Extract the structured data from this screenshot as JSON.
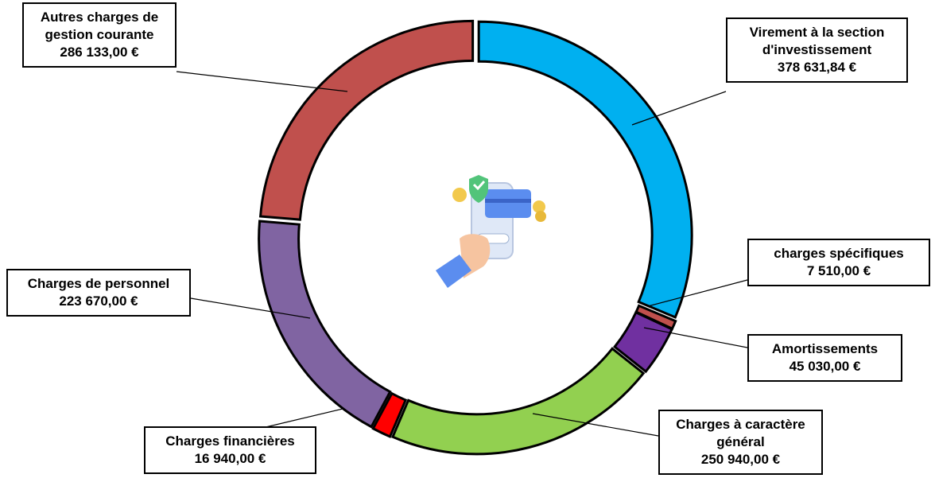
{
  "chart_data": {
    "type": "donut",
    "categories": [
      "Virement à la section d'investissement",
      "charges spécifiques",
      "Amortissements",
      "Charges à caractère général",
      "Charges financières",
      "Charges de personnel",
      "Autres charges de gestion courante"
    ],
    "values": [
      378631.84,
      7510,
      45030,
      250940,
      16940,
      223670,
      286133
    ],
    "value_labels": [
      "378 631,84 €",
      "7 510,00 €",
      "45 030,00 €",
      "250 940,00 €",
      "16 940,00 €",
      "223 670,00 €",
      "286 133,00 €"
    ],
    "colors": [
      "#00b0f0",
      "#c0504d",
      "#7030a0",
      "#92d050",
      "#ff0000",
      "#8064a2",
      "#c0504d"
    ]
  }
}
